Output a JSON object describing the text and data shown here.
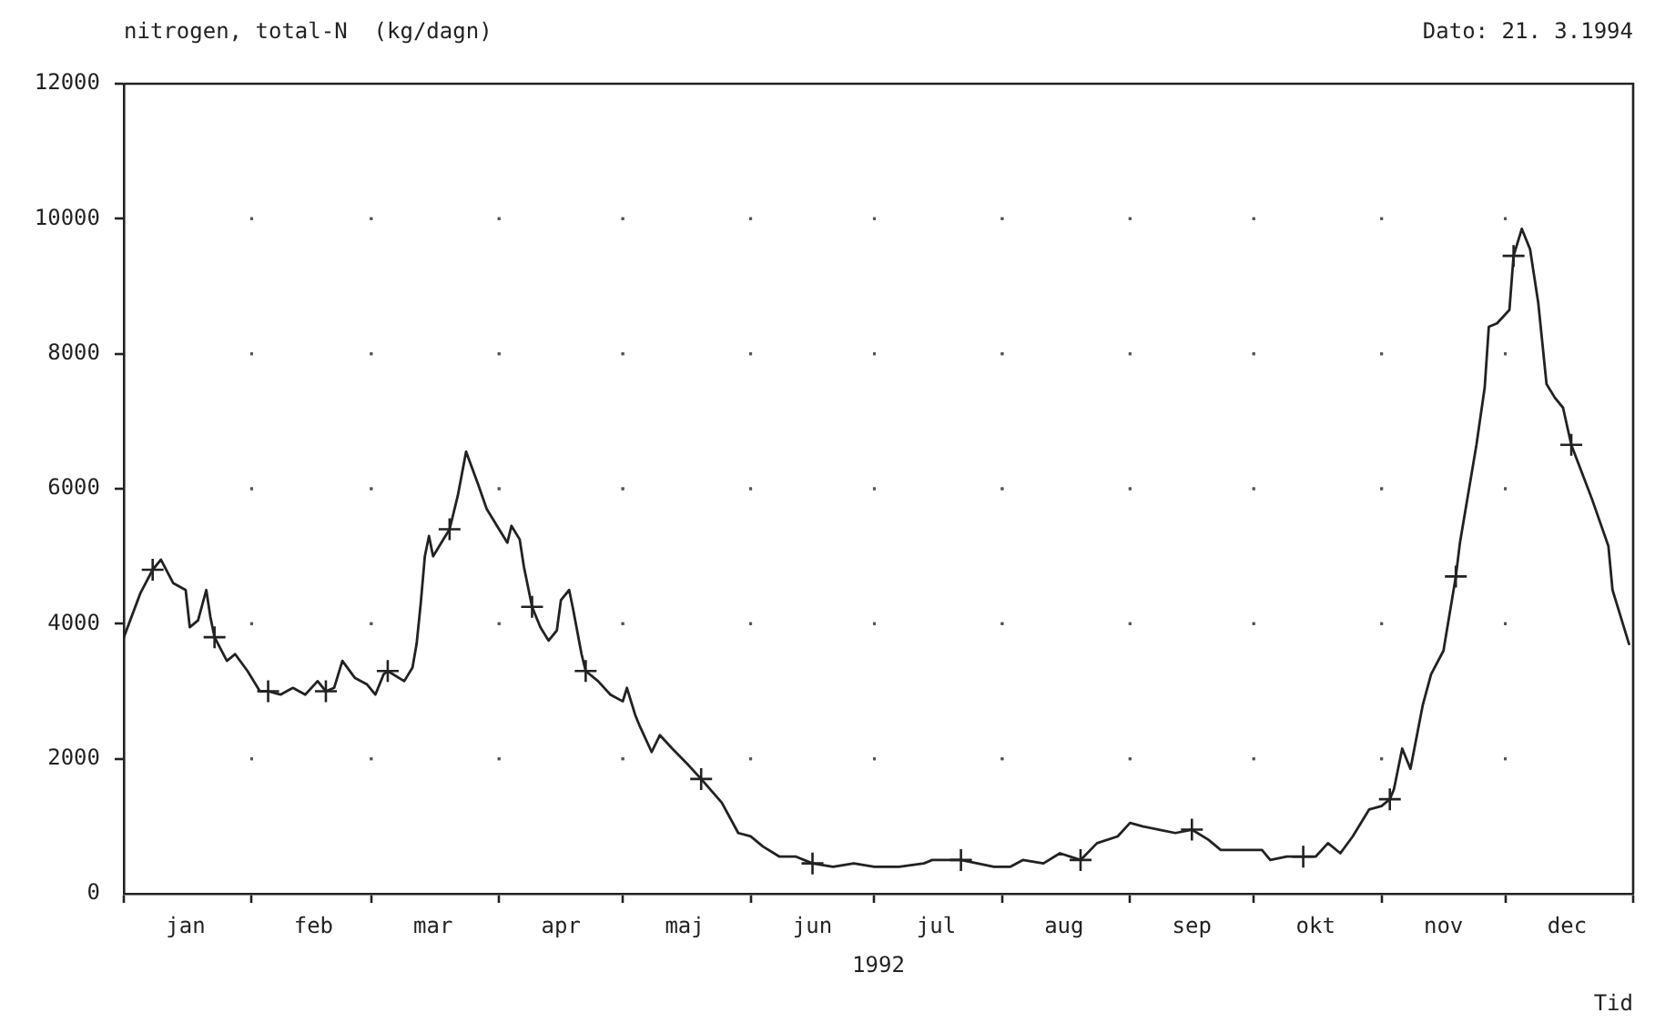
{
  "chart_data": {
    "type": "line",
    "title": "nitrogen, total-N  (kg/dagn)",
    "xlabel": "Tid",
    "annotations": [
      "Dato: 21. 3.1994",
      "1992"
    ],
    "xlim": [
      "1992-01-01",
      "1993-01-01"
    ],
    "xticks": [
      {
        "value": "1992-01-01",
        "label": null
      },
      {
        "value": "1992-01-16",
        "label": "jan"
      },
      {
        "value": "1992-02-01",
        "label": null
      },
      {
        "value": "1992-02-16",
        "label": "feb"
      },
      {
        "value": "1992-03-01",
        "label": null
      },
      {
        "value": "1992-03-16",
        "label": "mar"
      },
      {
        "value": "1992-04-01",
        "label": null
      },
      {
        "value": "1992-04-16",
        "label": "apr"
      },
      {
        "value": "1992-05-01",
        "label": null
      },
      {
        "value": "1992-05-16",
        "label": "maj"
      },
      {
        "value": "1992-06-01",
        "label": null
      },
      {
        "value": "1992-06-16",
        "label": "jun"
      },
      {
        "value": "1992-07-01",
        "label": null
      },
      {
        "value": "1992-07-16",
        "label": "jul"
      },
      {
        "value": "1992-08-01",
        "label": null
      },
      {
        "value": "1992-08-16",
        "label": "aug"
      },
      {
        "value": "1992-09-01",
        "label": null
      },
      {
        "value": "1992-09-16",
        "label": "sep"
      },
      {
        "value": "1992-10-01",
        "label": null
      },
      {
        "value": "1992-10-16",
        "label": "okt"
      },
      {
        "value": "1992-11-01",
        "label": null
      },
      {
        "value": "1992-11-16",
        "label": "nov"
      },
      {
        "value": "1992-12-01",
        "label": null
      },
      {
        "value": "1992-12-16",
        "label": "dec"
      },
      {
        "value": "1993-01-01",
        "label": null
      }
    ],
    "ylim": [
      0,
      12000
    ],
    "yticks": [
      0,
      2000,
      4000,
      6000,
      8000,
      10000,
      12000
    ],
    "grid": true,
    "series": [
      {
        "type": "line",
        "color": "#222222",
        "x": [
          "1992-01-01",
          "1992-01-05",
          "1992-01-08",
          "1992-01-10",
          "1992-01-13",
          "1992-01-16",
          "1992-01-17",
          "1992-01-19",
          "1992-01-21",
          "1992-01-22",
          "1992-01-23",
          "1992-01-26",
          "1992-01-28",
          "1992-01-31",
          "1992-02-03",
          "1992-02-05",
          "1992-02-08",
          "1992-02-11",
          "1992-02-14",
          "1992-02-17",
          "1992-02-19",
          "1992-02-21",
          "1992-02-23",
          "1992-02-26",
          "1992-02-29",
          "1992-03-02",
          "1992-03-04",
          "1992-03-05",
          "1992-03-09",
          "1992-03-11",
          "1992-03-12",
          "1992-03-13",
          "1992-03-14",
          "1992-03-15",
          "1992-03-16",
          "1992-03-18",
          "1992-03-20",
          "1992-03-22",
          "1992-03-24",
          "1992-03-27",
          "1992-03-29",
          "1992-04-01",
          "1992-04-03",
          "1992-04-04",
          "1992-04-06",
          "1992-04-07",
          "1992-04-09",
          "1992-04-11",
          "1992-04-13",
          "1992-04-15",
          "1992-04-16",
          "1992-04-18",
          "1992-04-19",
          "1992-04-21",
          "1992-04-22",
          "1992-04-25",
          "1992-04-28",
          "1992-05-01",
          "1992-05-02",
          "1992-05-04",
          "1992-05-05",
          "1992-05-08",
          "1992-05-10",
          "1992-05-13",
          "1992-05-17",
          "1992-05-20",
          "1992-05-25",
          "1992-05-29",
          "1992-06-01",
          "1992-06-04",
          "1992-06-08",
          "1992-06-12",
          "1992-06-16",
          "1992-06-21",
          "1992-06-26",
          "1992-07-01",
          "1992-07-07",
          "1992-07-13",
          "1992-07-15",
          "1992-07-22",
          "1992-07-26",
          "1992-07-30",
          "1992-08-03",
          "1992-08-06",
          "1992-08-11",
          "1992-08-15",
          "1992-08-20",
          "1992-08-24",
          "1992-08-29",
          "1992-09-01",
          "1992-09-04",
          "1992-09-08",
          "1992-09-12",
          "1992-09-16",
          "1992-09-20",
          "1992-09-23",
          "1992-09-29",
          "1992-10-03",
          "1992-10-05",
          "1992-10-09",
          "1992-10-13",
          "1992-10-16",
          "1992-10-19",
          "1992-10-22",
          "1992-10-25",
          "1992-10-29",
          "1992-11-01",
          "1992-11-03",
          "1992-11-04",
          "1992-11-06",
          "1992-11-08",
          "1992-11-11",
          "1992-11-13",
          "1992-11-16",
          "1992-11-19",
          "1992-11-20",
          "1992-11-24",
          "1992-11-26",
          "1992-11-27",
          "1992-11-29",
          "1992-12-02",
          "1992-12-03",
          "1992-12-05",
          "1992-12-07",
          "1992-12-09",
          "1992-12-11",
          "1992-12-13",
          "1992-12-15",
          "1992-12-17",
          "1992-12-22",
          "1992-12-26",
          "1992-12-27",
          "1992-12-31"
        ],
        "values": [
          3800,
          4450,
          4800,
          4950,
          4600,
          4500,
          3950,
          4050,
          4500,
          4100,
          3800,
          3450,
          3550,
          3300,
          3000,
          3000,
          2950,
          3050,
          2950,
          3150,
          3000,
          3050,
          3450,
          3200,
          3100,
          2950,
          3250,
          3300,
          3150,
          3350,
          3700,
          4300,
          5000,
          5300,
          5000,
          5200,
          5400,
          5900,
          6550,
          6050,
          5700,
          5400,
          5200,
          5450,
          5250,
          4850,
          4250,
          3950,
          3750,
          3900,
          4350,
          4500,
          4200,
          3550,
          3300,
          3150,
          2950,
          2850,
          3050,
          2650,
          2500,
          2100,
          2350,
          2150,
          1900,
          1700,
          1350,
          900,
          850,
          700,
          550,
          550,
          450,
          400,
          450,
          400,
          400,
          450,
          500,
          500,
          450,
          400,
          400,
          500,
          450,
          600,
          500,
          750,
          850,
          1050,
          1000,
          950,
          900,
          950,
          800,
          650,
          650,
          650,
          500,
          550,
          550,
          550,
          750,
          600,
          850,
          1250,
          1300,
          1400,
          1550,
          2150,
          1850,
          2800,
          3250,
          3600,
          4700,
          5200,
          6650,
          7500,
          8400,
          8450,
          8650,
          9450,
          9850,
          9550,
          8750,
          7550,
          7350,
          7200,
          6650,
          5850,
          5150,
          4500,
          3700
        ]
      },
      {
        "type": "scatter",
        "color": "#222222",
        "marker": "cross",
        "x": [
          "1992-01-08",
          "1992-01-23",
          "1992-02-05",
          "1992-02-19",
          "1992-03-05",
          "1992-03-20",
          "1992-04-09",
          "1992-04-22",
          "1992-05-20",
          "1992-06-16",
          "1992-07-22",
          "1992-08-20",
          "1992-09-16",
          "1992-10-13",
          "1992-11-03",
          "1992-11-19",
          "1992-12-03",
          "1992-12-17"
        ],
        "values": [
          4800,
          3800,
          3000,
          3000,
          3300,
          5400,
          4250,
          3300,
          1700,
          450,
          500,
          500,
          950,
          550,
          1400,
          4700,
          9450,
          6650
        ]
      }
    ]
  }
}
